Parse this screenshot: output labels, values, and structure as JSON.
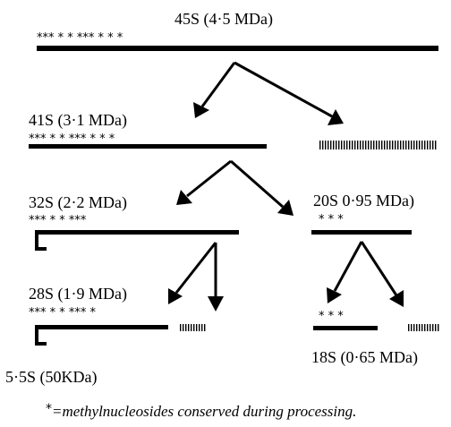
{
  "labels": {
    "r45s": "45S (4·5 MDa)",
    "r41s": "41S (3·1 MDa)",
    "r32s": "32S (2·2 MDa)",
    "r20s": "20S 0·95 MDa)",
    "r28s": "28S (1·9 MDa)",
    "r18s": "18S (0·65 MDa)",
    "r5s": "5·5S (50KDa)"
  },
  "stars": {
    "s45": "*** * * *** * * *",
    "s41": "*** * * *** * * *",
    "s32": "*** * * ***",
    "s20": "* * *",
    "s28": "*** * * *** *",
    "s18": "* * *"
  },
  "legend": {
    "star": "*",
    "text": "=methylnucleosides conserved during processing."
  }
}
